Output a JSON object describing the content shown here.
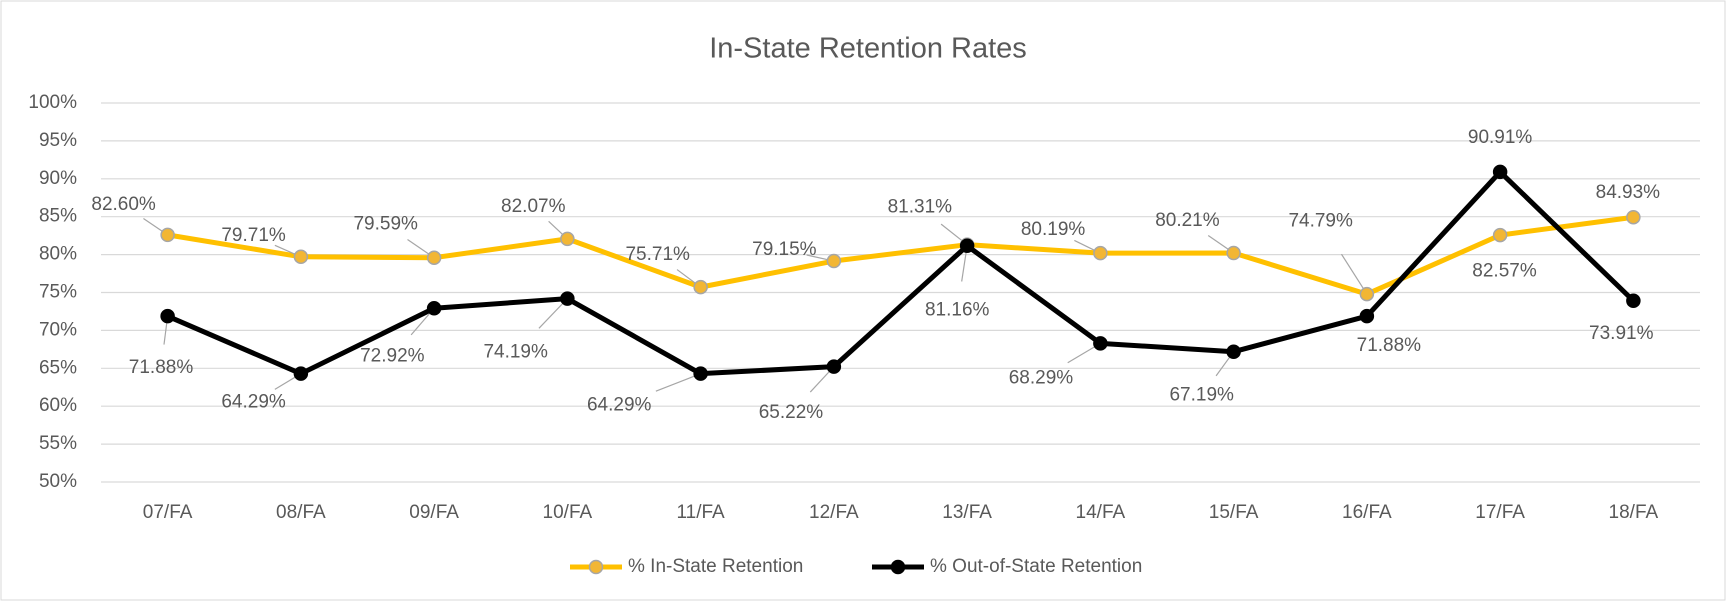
{
  "chart_data": {
    "type": "line",
    "title": "In-State Retention Rates",
    "categories": [
      "07/FA",
      "08/FA",
      "09/FA",
      "10/FA",
      "11/FA",
      "12/FA",
      "13/FA",
      "14/FA",
      "15/FA",
      "16/FA",
      "17/FA",
      "18/FA"
    ],
    "series": [
      {
        "name": "% In-State Retention",
        "color": "#FFC000",
        "marker_color": "#F2B634",
        "values": [
          82.6,
          79.71,
          79.59,
          82.07,
          75.71,
          79.15,
          81.31,
          80.19,
          80.21,
          74.79,
          82.57,
          84.93
        ],
        "value_labels": [
          "82.60%",
          "79.71%",
          "79.59%",
          "82.07%",
          "75.71%",
          "79.15%",
          "81.31%",
          "80.19%",
          "80.21%",
          "74.79%",
          "82.57%",
          "84.93%"
        ]
      },
      {
        "name": "% Out-of-State Retention",
        "color": "#000000",
        "marker_color": "#000000",
        "values": [
          71.88,
          64.29,
          72.92,
          74.19,
          64.29,
          65.22,
          81.16,
          68.29,
          67.19,
          71.88,
          90.91,
          73.91
        ],
        "value_labels": [
          "71.88%",
          "64.29%",
          "72.92%",
          "74.19%",
          "64.29%",
          "65.22%",
          "81.16%",
          "68.29%",
          "67.19%",
          "71.88%",
          "90.91%",
          "73.91%"
        ]
      }
    ],
    "ylim": [
      50,
      100
    ],
    "yticks": [
      {
        "value": 50,
        "label": "50%"
      },
      {
        "value": 55,
        "label": "55%"
      },
      {
        "value": 60,
        "label": "60%"
      },
      {
        "value": 65,
        "label": "65%"
      },
      {
        "value": 70,
        "label": "70%"
      },
      {
        "value": 75,
        "label": "75%"
      },
      {
        "value": 80,
        "label": "80%"
      },
      {
        "value": 85,
        "label": "85%"
      },
      {
        "value": 90,
        "label": "90%"
      },
      {
        "value": 95,
        "label": "95%"
      },
      {
        "value": 100,
        "label": "100%"
      }
    ],
    "grid": true,
    "legend": "bottom"
  }
}
